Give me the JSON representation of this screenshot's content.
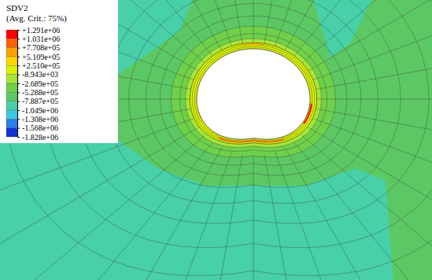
{
  "chart_data": {
    "type": "contour",
    "title": "SDV2",
    "subtitle": "(Avg. Crit.: 75%)",
    "colorbar": {
      "range": [
        -1828000,
        1291000
      ],
      "ticks": [
        {
          "value": 1291000,
          "label": "+1.291e+06"
        },
        {
          "value": 1031000,
          "label": "+1.031e+06"
        },
        {
          "value": 770800,
          "label": "+7.708e+05"
        },
        {
          "value": 510900,
          "label": "+5.109e+05"
        },
        {
          "value": 251000,
          "label": "+2.510e+05"
        },
        {
          "value": -8943,
          "label": "-8.943e+03"
        },
        {
          "value": -268900,
          "label": "-2.689e+05"
        },
        {
          "value": -528800,
          "label": "-5.288e+05"
        },
        {
          "value": -788700,
          "label": "-7.887e+05"
        },
        {
          "value": -1049000,
          "label": "-1.049e+06"
        },
        {
          "value": -1308000,
          "label": "-1.308e+06"
        },
        {
          "value": -1568000,
          "label": "-1.568e+06"
        },
        {
          "value": -1828000,
          "label": "-1.828e+06"
        }
      ],
      "colors": [
        "#ff0000",
        "#ff6000",
        "#ffa000",
        "#ffd500",
        "#d8f000",
        "#a6e63a",
        "#6fd04a",
        "#5cc864",
        "#48d0a8",
        "#3fc8e0",
        "#2a7fe8",
        "#1030d8"
      ]
    }
  }
}
